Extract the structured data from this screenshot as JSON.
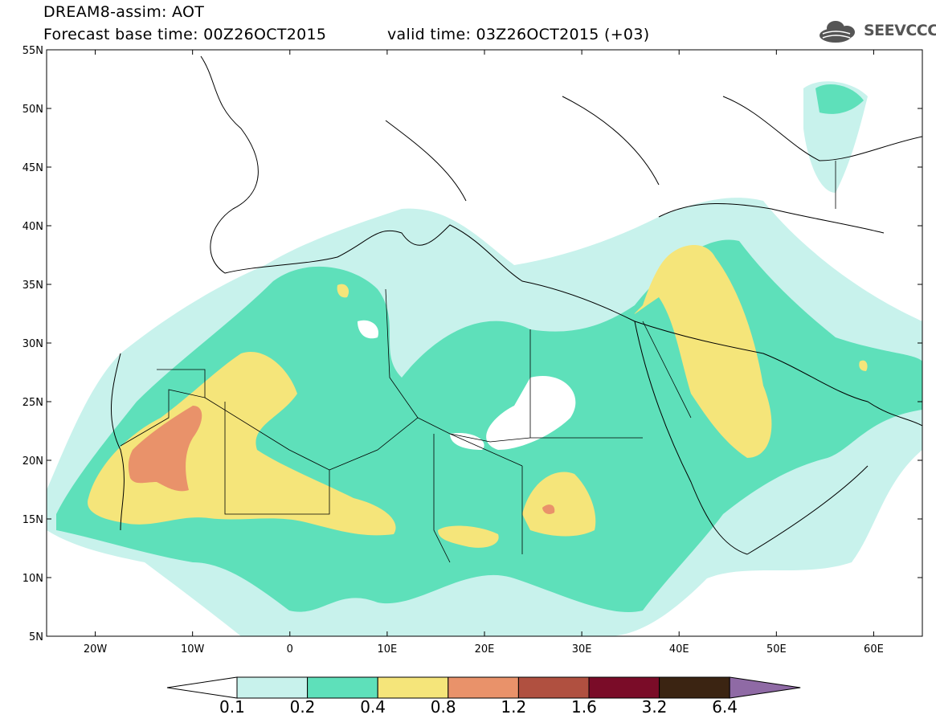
{
  "title": {
    "line1": "DREAM8-assim: AOT",
    "base": "Forecast base time: 00Z26OCT2015",
    "valid": "valid time: 03Z26OCT2015 (+03)"
  },
  "logo": {
    "text": "SEEVCCC",
    "icon": "cloud-logo-icon"
  },
  "axes": {
    "lon_labels": [
      "20W",
      "10W",
      "0",
      "10E",
      "20E",
      "30E",
      "40E",
      "50E",
      "60E"
    ],
    "lat_labels": [
      "55N",
      "50N",
      "45N",
      "40N",
      "35N",
      "30N",
      "25N",
      "20N",
      "15N",
      "10N",
      "5N"
    ],
    "lon_range": [
      -25,
      65
    ],
    "lat_range": [
      5,
      55
    ]
  },
  "colorbar": {
    "labels": [
      "0.1",
      "0.2",
      "0.4",
      "0.8",
      "1.2",
      "1.6",
      "3.2",
      "6.4"
    ],
    "colors": [
      "#c8f2ec",
      "#5ee0ba",
      "#f5e57a",
      "#e9926a",
      "#b05040",
      "#7a0c28",
      "#3b2412",
      "#8f6aa5"
    ]
  }
}
